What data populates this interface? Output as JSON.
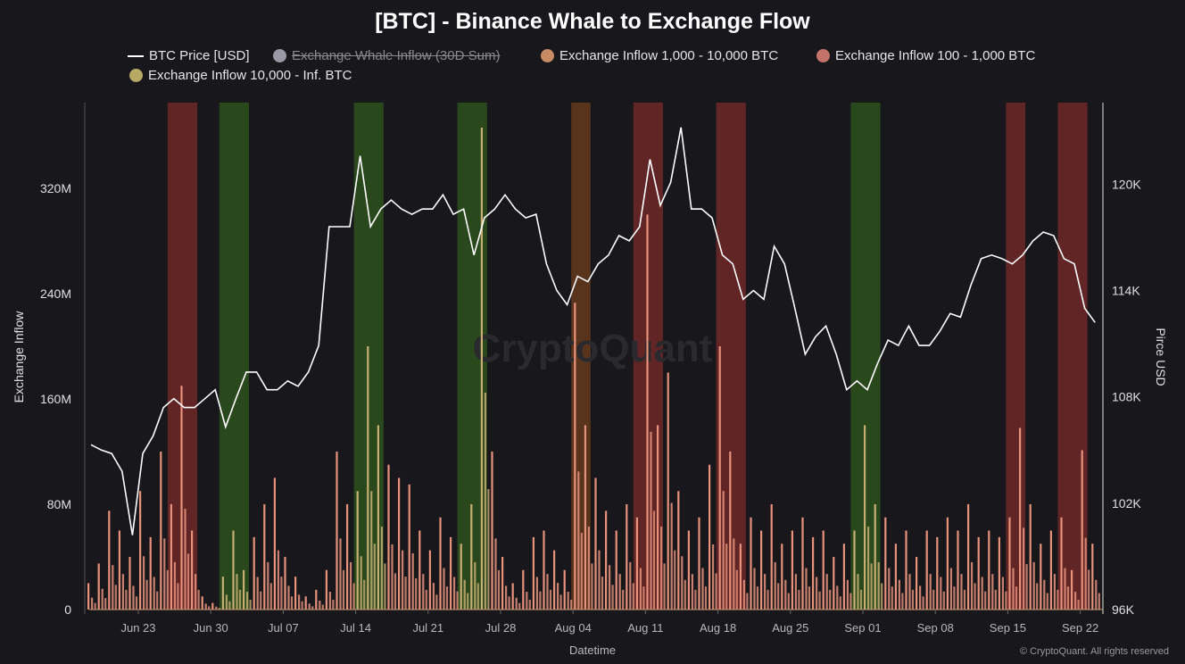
{
  "chart_data": {
    "type": "bar+line",
    "title": "[BTC] - Binance Whale to Exchange Flow",
    "xlabel": "Datetime",
    "ylabel_left": "Exchange Inflow",
    "ylabel_right": "Pirce USD",
    "start_date": "2025-06-18",
    "x_ticks": [
      "Jun 23",
      "Jun 30",
      "Jul 07",
      "Jul 14",
      "Jul 21",
      "Jul 28",
      "Aug 04",
      "Aug 11",
      "Aug 18",
      "Aug 25",
      "Sep 01",
      "Sep 08",
      "Sep 15",
      "Sep 22"
    ],
    "y_left_ticks": [
      "0",
      "80M",
      "160M",
      "240M",
      "320M"
    ],
    "y_left_range_millions": [
      0,
      385
    ],
    "y_right_ticks": [
      "96K",
      "102K",
      "108K",
      "114K",
      "120K"
    ],
    "y_right_range_thousands": [
      96,
      124.6
    ],
    "legend": [
      {
        "label": "BTC Price [USD]",
        "color": "#ffffff",
        "marker": "line",
        "hidden": false
      },
      {
        "label": "Exchange Whale Inflow (30D Sum)",
        "color": "#9a9aa6",
        "marker": "dot",
        "hidden": true
      },
      {
        "label": "Exchange Inflow 1,000 - 10,000 BTC",
        "color": "#c98a66",
        "marker": "dot",
        "hidden": false
      },
      {
        "label": "Exchange Inflow 100 - 1,000 BTC",
        "color": "#c4736a",
        "marker": "dot",
        "hidden": false
      },
      {
        "label": "Exchange Inflow 10,000 - Inf. BTC",
        "color": "#b8aa66",
        "marker": "dot",
        "hidden": false
      }
    ],
    "bar_color": "#e8927c",
    "bar_color_highlight": "#c8ae72",
    "price_thousands": [
      105.3,
      105.0,
      104.8,
      103.8,
      100.2,
      104.8,
      105.8,
      107.4,
      107.9,
      107.4,
      107.4,
      107.9,
      108.4,
      106.3,
      107.9,
      109.4,
      109.4,
      108.4,
      108.4,
      108.9,
      108.6,
      109.4,
      110.9,
      117.6,
      117.6,
      117.6,
      121.6,
      117.6,
      118.6,
      119.1,
      118.6,
      118.3,
      118.6,
      118.6,
      119.4,
      118.3,
      118.6,
      116.0,
      118.1,
      118.6,
      119.4,
      118.6,
      118.1,
      118.3,
      115.5,
      114.0,
      113.2,
      114.8,
      114.5,
      115.5,
      116.0,
      117.1,
      116.8,
      117.6,
      121.4,
      118.8,
      120.1,
      123.2,
      118.6,
      118.6,
      118.1,
      116.0,
      115.5,
      113.5,
      114.0,
      113.5,
      116.5,
      115.5,
      113.0,
      110.4,
      111.4,
      112.0,
      110.4,
      108.4,
      108.9,
      108.4,
      109.9,
      111.2,
      110.9,
      112.0,
      110.9,
      110.9,
      111.7,
      112.7,
      112.5,
      114.3,
      115.8,
      116.0,
      115.8,
      115.5,
      116.0,
      116.8,
      117.3,
      117.1,
      115.8,
      115.5,
      113.0,
      112.2
    ],
    "inflow_millions": [
      20,
      35,
      75,
      60,
      40,
      90,
      55,
      120,
      80,
      170,
      60,
      10,
      5,
      25,
      60,
      30,
      55,
      80,
      100,
      40,
      25,
      10,
      15,
      30,
      120,
      80,
      90,
      200,
      140,
      110,
      100,
      95,
      60,
      45,
      70,
      55,
      50,
      80,
      366,
      120,
      40,
      20,
      30,
      55,
      60,
      45,
      30,
      233,
      140,
      100,
      75,
      60,
      80,
      70,
      300,
      140,
      180,
      90,
      60,
      70,
      110,
      200,
      120,
      50,
      70,
      60,
      80,
      50,
      60,
      70,
      55,
      60,
      40,
      50,
      60,
      140,
      80,
      70,
      50,
      60,
      40,
      60,
      55,
      70,
      60,
      80,
      55,
      60,
      55,
      70,
      138,
      80,
      50,
      60,
      70,
      30,
      121,
      50
    ],
    "highlight_bands": [
      {
        "start": "2025-06-26",
        "end": "2025-06-28",
        "color": "#7a2a2a"
      },
      {
        "start": "2025-07-01",
        "end": "2025-07-03",
        "color": "#2f5a1e"
      },
      {
        "start": "2025-07-14",
        "end": "2025-07-16",
        "color": "#2f5a1e"
      },
      {
        "start": "2025-07-24",
        "end": "2025-07-26",
        "color": "#2f5a1e"
      },
      {
        "start": "2025-08-04",
        "end": "2025-08-05",
        "color": "#6e3e1e"
      },
      {
        "start": "2025-08-10",
        "end": "2025-08-12",
        "color": "#7a2a2a"
      },
      {
        "start": "2025-08-18",
        "end": "2025-08-20",
        "color": "#7a2a2a"
      },
      {
        "start": "2025-08-31",
        "end": "2025-09-02",
        "color": "#2f5a1e"
      },
      {
        "start": "2025-09-15",
        "end": "2025-09-16",
        "color": "#7a2a2a"
      },
      {
        "start": "2025-09-20",
        "end": "2025-09-22",
        "color": "#7a2a2a"
      }
    ]
  },
  "watermark": "CryptoQuant",
  "copyright": "© CryptoQuant. All rights reserved"
}
